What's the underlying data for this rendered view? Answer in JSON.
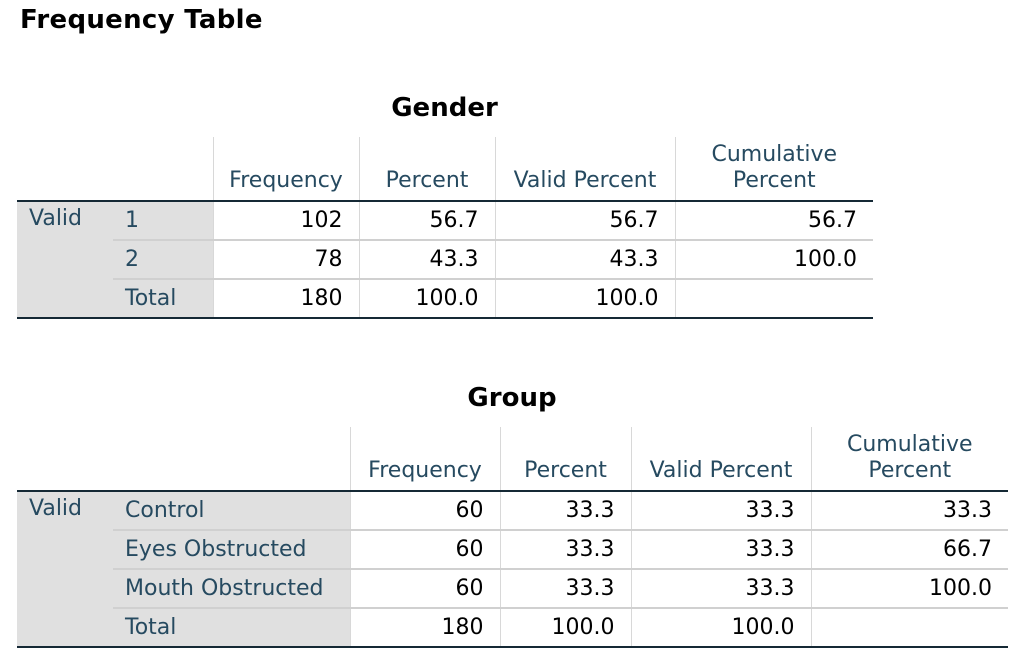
{
  "page_title": "Frequency Table",
  "tables": [
    {
      "title": "Gender",
      "headers": {
        "frequency": "Frequency",
        "percent": "Percent",
        "valid_percent": "Valid Percent",
        "cumulative_line1": "Cumulative",
        "cumulative_line2": "Percent"
      },
      "group_label": "Valid",
      "rows": [
        {
          "label": "1",
          "frequency": "102",
          "percent": "56.7",
          "valid_percent": "56.7",
          "cumulative": "56.7"
        },
        {
          "label": "2",
          "frequency": "78",
          "percent": "43.3",
          "valid_percent": "43.3",
          "cumulative": "100.0"
        },
        {
          "label": "Total",
          "frequency": "180",
          "percent": "100.0",
          "valid_percent": "100.0",
          "cumulative": ""
        }
      ]
    },
    {
      "title": "Group",
      "headers": {
        "frequency": "Frequency",
        "percent": "Percent",
        "valid_percent": "Valid Percent",
        "cumulative_line1": "Cumulative",
        "cumulative_line2": "Percent"
      },
      "group_label": "Valid",
      "rows": [
        {
          "label": "Control",
          "frequency": "60",
          "percent": "33.3",
          "valid_percent": "33.3",
          "cumulative": "33.3"
        },
        {
          "label": "Eyes Obstructed",
          "frequency": "60",
          "percent": "33.3",
          "valid_percent": "33.3",
          "cumulative": "66.7"
        },
        {
          "label": "Mouth Obstructed",
          "frequency": "60",
          "percent": "33.3",
          "valid_percent": "33.3",
          "cumulative": "100.0"
        },
        {
          "label": "Total",
          "frequency": "180",
          "percent": "100.0",
          "valid_percent": "100.0",
          "cumulative": ""
        }
      ]
    }
  ]
}
